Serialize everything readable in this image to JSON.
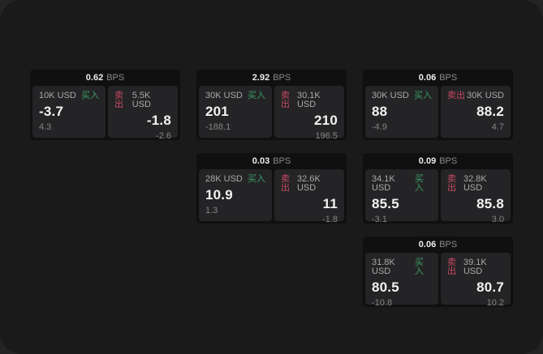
{
  "labels": {
    "bps": "BPS",
    "buy": "买入",
    "sell": "卖出"
  },
  "colors": {
    "buy": "#3a9e66",
    "sell": "#c84963",
    "window_bg": "#1a1a1a",
    "outer_bg": "#242424",
    "card_bg": "#101011",
    "panel_bg": "#242426"
  },
  "cards": [
    {
      "bps": "0.62",
      "buy": {
        "amount": "10K USD",
        "price": "-3.7",
        "delta": "4.3"
      },
      "sell": {
        "amount": "5.5K USD",
        "price": "-1.8",
        "delta": "-2.6"
      }
    },
    {
      "bps": "2.92",
      "buy": {
        "amount": "30K USD",
        "price": "201",
        "delta": "-188.1"
      },
      "sell": {
        "amount": "30.1K USD",
        "price": "210",
        "delta": "196.5"
      }
    },
    {
      "bps": "0.06",
      "buy": {
        "amount": "30K USD",
        "price": "88",
        "delta": "-4.9"
      },
      "sell": {
        "amount": "30K USD",
        "price": "88.2",
        "delta": "4.7"
      }
    },
    {
      "bps": "0.03",
      "buy": {
        "amount": "28K USD",
        "price": "10.9",
        "delta": "1.3"
      },
      "sell": {
        "amount": "32.6K USD",
        "price": "11",
        "delta": "-1.8"
      }
    },
    {
      "bps": "0.09",
      "buy": {
        "amount": "34.1K USD",
        "price": "85.5",
        "delta": "-3.1"
      },
      "sell": {
        "amount": "32.8K USD",
        "price": "85.8",
        "delta": "3.0"
      }
    },
    {
      "bps": "0.06",
      "buy": {
        "amount": "31.8K USD",
        "price": "80.5",
        "delta": "-10.8"
      },
      "sell": {
        "amount": "39.1K USD",
        "price": "80.7",
        "delta": "10.2"
      }
    }
  ]
}
